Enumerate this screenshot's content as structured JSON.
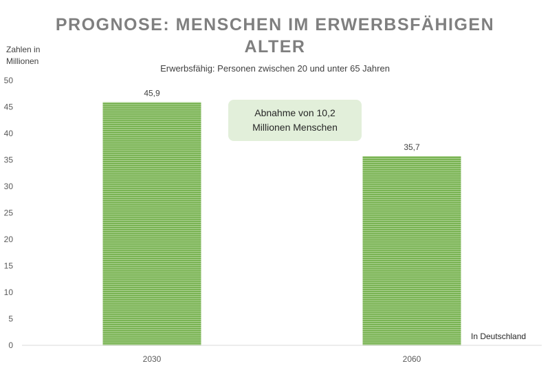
{
  "chart_data": {
    "type": "bar",
    "title": "PROGNOSE: MENSCHEN IM ERWERBSFÄHIGEN ALTER",
    "title_lines": [
      "PROGNOSE: MENSCHEN IM ERWERBSFÄHIGEN",
      "ALTER"
    ],
    "subtitle": "Erwerbsfähig: Personen zwischen 20 und unter 65 Jahren",
    "ylabel": "Zahlen in Millionen",
    "ylabel_lines": [
      "Zahlen in",
      "Millionen"
    ],
    "xlabel": "",
    "categories": [
      "2030",
      "2060"
    ],
    "values": [
      45.9,
      35.7
    ],
    "value_labels": [
      "45,9",
      "35,7"
    ],
    "ylim": [
      0,
      50
    ],
    "yticks": [
      0,
      5,
      10,
      15,
      20,
      25,
      30,
      35,
      40,
      45,
      50
    ],
    "grid": false,
    "legend": "none",
    "bar_color": "#70ad47",
    "annotation": {
      "text": "Abnahme von 10,2 Millionen Menschen",
      "lines": [
        "Abnahme von 10,2",
        "Millionen Menschen"
      ],
      "background": "#e2efda"
    },
    "note": "In Deutschland"
  }
}
